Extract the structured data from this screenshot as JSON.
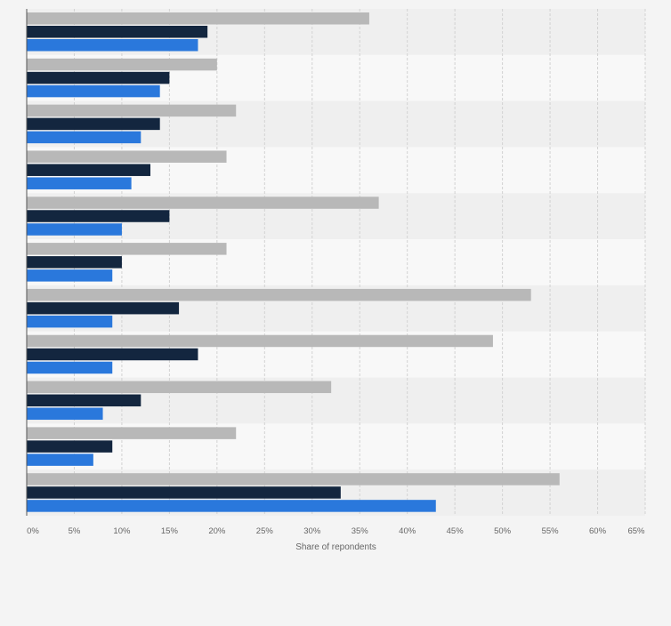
{
  "chart_data": {
    "type": "bar",
    "orientation": "horizontal",
    "xlabel": "Share of repondents",
    "xlim": [
      0,
      65
    ],
    "x_ticks": [
      "0%",
      "5%",
      "10%",
      "15%",
      "20%",
      "25%",
      "30%",
      "35%",
      "40%",
      "45%",
      "50%",
      "55%",
      "60%",
      "65%"
    ],
    "grid": true,
    "colors": [
      "#b8b8b8",
      "#13263f",
      "#2a78dc"
    ],
    "background_colors": [
      "#efefef",
      "#f8f8f8"
    ],
    "series": [
      {
        "values": [
          36,
          20,
          22,
          21,
          37,
          21,
          53,
          49,
          32,
          22,
          56
        ]
      },
      {
        "values": [
          19,
          15,
          14,
          13,
          15,
          10,
          16,
          18,
          12,
          9,
          33
        ]
      },
      {
        "values": [
          18,
          14,
          12,
          11,
          10,
          9,
          9,
          9,
          8,
          7,
          43
        ]
      }
    ]
  }
}
